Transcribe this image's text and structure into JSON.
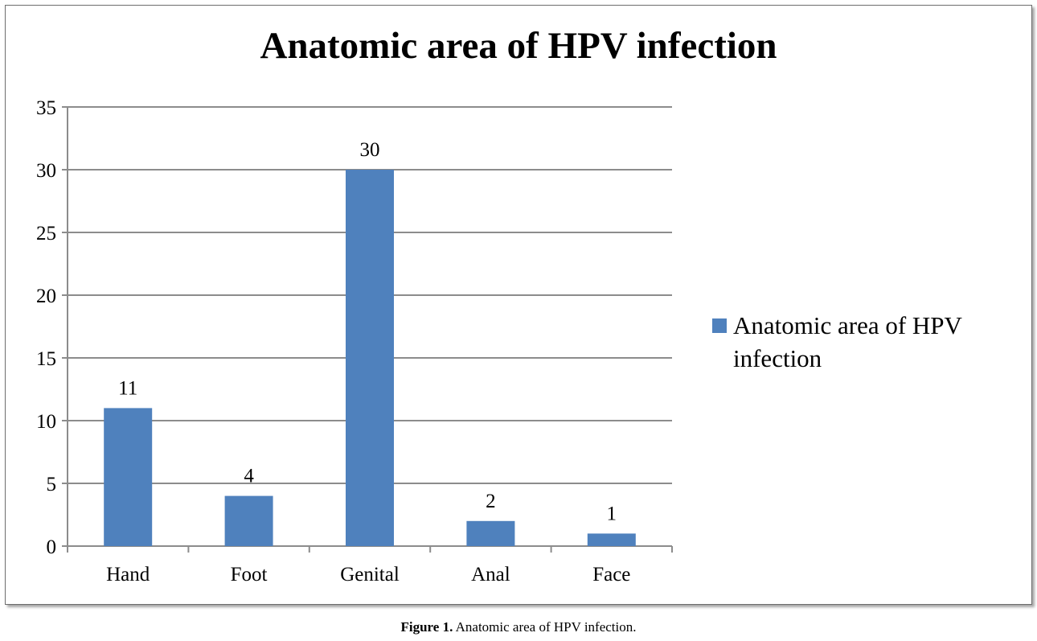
{
  "chart_data": {
    "type": "bar",
    "title": "Anatomic area of HPV infection",
    "categories": [
      "Hand",
      "Foot",
      "Genital",
      "Anal",
      "Face"
    ],
    "series": [
      {
        "name": "Anatomic area of HPV infection",
        "values": [
          11,
          4,
          30,
          2,
          1
        ]
      }
    ],
    "ylim": [
      0,
      35
    ],
    "yticks": [
      0,
      5,
      10,
      15,
      20,
      25,
      30,
      35
    ],
    "grid": true,
    "legend_position": "right",
    "data_labels": true,
    "bar_color": "#4f81bd"
  },
  "caption": {
    "label": "Figure 1.",
    "text": " Anatomic area of HPV infection."
  }
}
